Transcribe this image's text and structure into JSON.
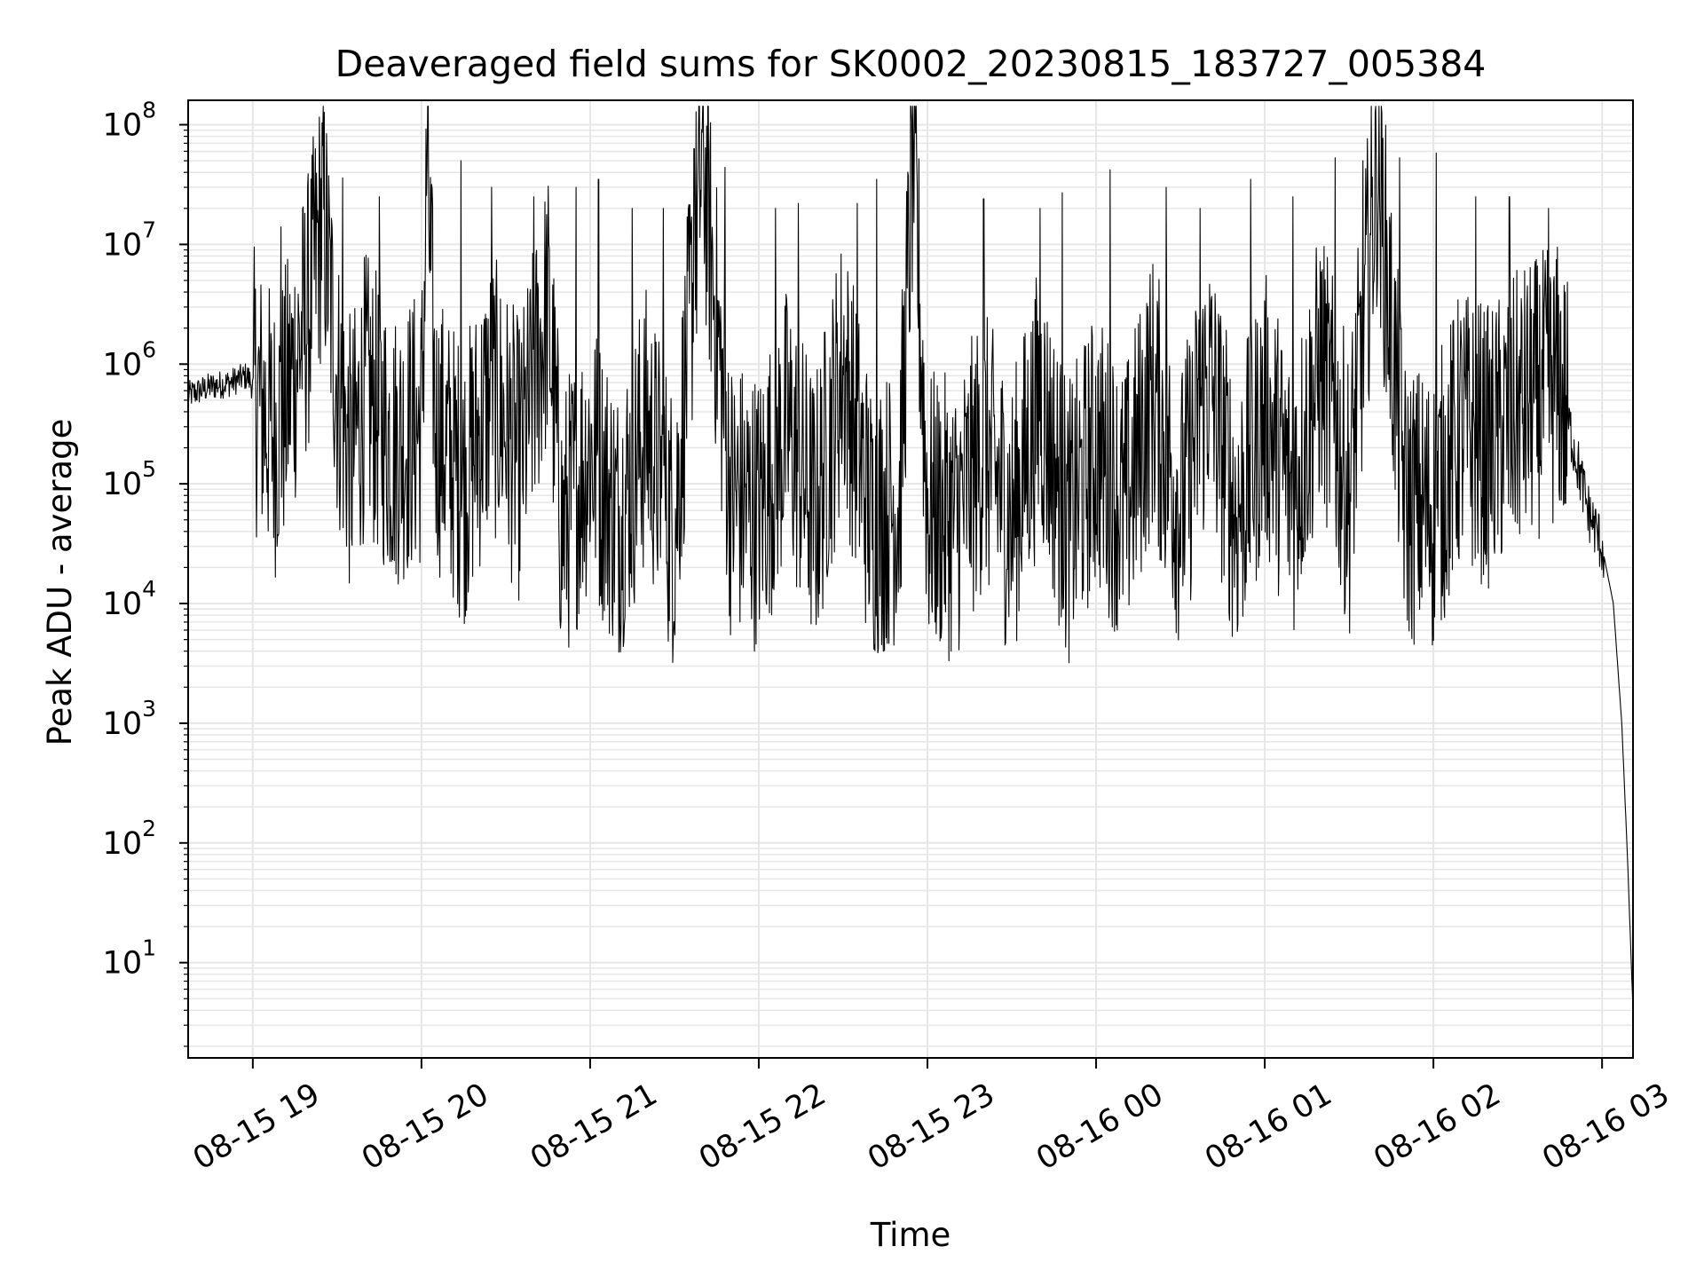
{
  "chart_data": {
    "type": "line",
    "title": "Deaveraged field sums for SK0002_20230815_183727_005384",
    "xlabel": "Time",
    "ylabel": "Peak ADU - average",
    "xscale": "time",
    "yscale": "log",
    "xlim": [
      "2023-08-15 18:37",
      "2023-08-16 03:11"
    ],
    "ylim": [
      1.6,
      160000000
    ],
    "grid": true,
    "line_color": "#000000",
    "grid_color": "#e6e6e6",
    "x_ticks": [
      "08-15 19",
      "08-15 20",
      "08-15 21",
      "08-15 22",
      "08-15 23",
      "08-16 00",
      "08-16 01",
      "08-16 02",
      "08-16 03"
    ],
    "x_tick_times": [
      "2023-08-15 19:00",
      "2023-08-15 20:00",
      "2023-08-15 21:00",
      "2023-08-15 22:00",
      "2023-08-15 23:00",
      "2023-08-16 00:00",
      "2023-08-16 01:00",
      "2023-08-16 02:00",
      "2023-08-16 03:00"
    ],
    "y_ticks": [
      {
        "value": 10,
        "base": "10",
        "exp": "1"
      },
      {
        "value": 100,
        "base": "10",
        "exp": "2"
      },
      {
        "value": 1000,
        "base": "10",
        "exp": "3"
      },
      {
        "value": 10000,
        "base": "10",
        "exp": "4"
      },
      {
        "value": 100000,
        "base": "10",
        "exp": "5"
      },
      {
        "value": 1000000,
        "base": "10",
        "exp": "6"
      },
      {
        "value": 10000000,
        "base": "10",
        "exp": "7"
      },
      {
        "value": 100000000,
        "base": "10",
        "exp": "8"
      }
    ],
    "series": [
      {
        "points": [
          [
            "2023-08-15 18:37",
            550000
          ],
          [
            "2023-08-15 18:45",
            650000
          ],
          [
            "2023-08-15 18:52",
            700000
          ],
          [
            "2023-08-15 18:58",
            800000
          ],
          [
            "2023-08-15 19:00",
            650000
          ],
          [
            "2023-08-15 19:05",
            350000
          ],
          [
            "2023-08-15 19:08",
            250000
          ],
          [
            "2023-08-15 19:12",
            500000
          ],
          [
            "2023-08-15 19:15",
            1000000
          ],
          [
            "2023-08-15 19:20",
            3000000
          ],
          [
            "2023-08-15 19:25",
            20000000
          ],
          [
            "2023-08-15 19:30",
            700000
          ],
          [
            "2023-08-15 19:35",
            150000
          ],
          [
            "2023-08-15 19:40",
            600000
          ],
          [
            "2023-08-15 19:50",
            200000
          ],
          [
            "2023-08-15 20:00",
            300000
          ],
          [
            "2023-08-15 20:02",
            45000000
          ],
          [
            "2023-08-15 20:05",
            300000
          ],
          [
            "2023-08-15 20:15",
            100000
          ],
          [
            "2023-08-15 20:25",
            600000
          ],
          [
            "2023-08-15 20:35",
            150000
          ],
          [
            "2023-08-15 20:45",
            3000000
          ],
          [
            "2023-08-15 20:50",
            40000
          ],
          [
            "2023-08-15 21:00",
            200000
          ],
          [
            "2023-08-15 21:10",
            50000
          ],
          [
            "2023-08-15 21:20",
            300000
          ],
          [
            "2023-08-15 21:30",
            40000
          ],
          [
            "2023-08-15 21:40",
            60000000
          ],
          [
            "2023-08-15 21:50",
            80000
          ],
          [
            "2023-08-15 22:00",
            60000
          ],
          [
            "2023-08-15 22:10",
            300000
          ],
          [
            "2023-08-15 22:20",
            55000
          ],
          [
            "2023-08-15 22:30",
            1000000
          ],
          [
            "2023-08-15 22:40",
            50000
          ],
          [
            "2023-08-15 22:50",
            70000
          ],
          [
            "2023-08-15 22:55",
            70000000
          ],
          [
            "2023-08-15 23:00",
            60000
          ],
          [
            "2023-08-15 23:10",
            50000
          ],
          [
            "2023-08-15 23:20",
            200000
          ],
          [
            "2023-08-15 23:30",
            50000
          ],
          [
            "2023-08-15 23:40",
            500000
          ],
          [
            "2023-08-15 23:50",
            45000
          ],
          [
            "2023-08-16 00:00",
            200000
          ],
          [
            "2023-08-16 00:10",
            60000
          ],
          [
            "2023-08-16 00:20",
            600000
          ],
          [
            "2023-08-16 00:30",
            60000
          ],
          [
            "2023-08-16 00:40",
            800000
          ],
          [
            "2023-08-16 00:50",
            50000
          ],
          [
            "2023-08-16 01:00",
            400000
          ],
          [
            "2023-08-16 01:10",
            80000
          ],
          [
            "2023-08-16 01:20",
            1000000
          ],
          [
            "2023-08-16 01:30",
            80000
          ],
          [
            "2023-08-16 01:40",
            50000000
          ],
          [
            "2023-08-16 01:50",
            70000
          ],
          [
            "2023-08-16 02:00",
            60000
          ],
          [
            "2023-08-16 02:10",
            300000
          ],
          [
            "2023-08-16 02:20",
            200000
          ],
          [
            "2023-08-16 02:30",
            400000
          ],
          [
            "2023-08-16 02:40",
            600000
          ],
          [
            "2023-08-16 02:45",
            700000
          ],
          [
            "2023-08-16 02:50",
            200000
          ],
          [
            "2023-08-16 02:55",
            60000
          ],
          [
            "2023-08-16 03:00",
            30000
          ],
          [
            "2023-08-16 03:04",
            10000
          ],
          [
            "2023-08-16 03:07",
            1000
          ],
          [
            "2023-08-16 03:09",
            80
          ],
          [
            "2023-08-16 03:11",
            4
          ]
        ],
        "peaks": [
          [
            "2023-08-15 19:10",
            14000000
          ],
          [
            "2023-08-15 19:22",
            25000000
          ],
          [
            "2023-08-15 19:32",
            36000000
          ],
          [
            "2023-08-15 19:45",
            25000000
          ],
          [
            "2023-08-15 20:02",
            45000000
          ],
          [
            "2023-08-15 20:14",
            50000000
          ],
          [
            "2023-08-15 20:25",
            30000000
          ],
          [
            "2023-08-15 20:40",
            25000000
          ],
          [
            "2023-08-15 20:55",
            30000000
          ],
          [
            "2023-08-15 21:03",
            35000000
          ],
          [
            "2023-08-15 21:15",
            20000000
          ],
          [
            "2023-08-15 21:26",
            20000000
          ],
          [
            "2023-08-15 21:37",
            63000000
          ],
          [
            "2023-08-15 21:48",
            44000000
          ],
          [
            "2023-08-15 22:06",
            20000000
          ],
          [
            "2023-08-15 22:14",
            22000000
          ],
          [
            "2023-08-15 22:35",
            22000000
          ],
          [
            "2023-08-15 22:42",
            35000000
          ],
          [
            "2023-08-15 22:55",
            72000000
          ],
          [
            "2023-08-15 23:20",
            24000000
          ],
          [
            "2023-08-15 23:40",
            20000000
          ],
          [
            "2023-08-15 23:48",
            27000000
          ],
          [
            "2023-08-16 00:05",
            42000000
          ],
          [
            "2023-08-16 00:25",
            30000000
          ],
          [
            "2023-08-16 00:37",
            20000000
          ],
          [
            "2023-08-16 00:55",
            35000000
          ],
          [
            "2023-08-16 01:10",
            25000000
          ],
          [
            "2023-08-16 01:25",
            53000000
          ],
          [
            "2023-08-16 01:35",
            50000000
          ],
          [
            "2023-08-16 01:48",
            53000000
          ],
          [
            "2023-08-16 02:01",
            58000000
          ],
          [
            "2023-08-16 02:15",
            25000000
          ],
          [
            "2023-08-16 02:27",
            25000000
          ],
          [
            "2023-08-16 02:41",
            20000000
          ]
        ]
      }
    ]
  }
}
